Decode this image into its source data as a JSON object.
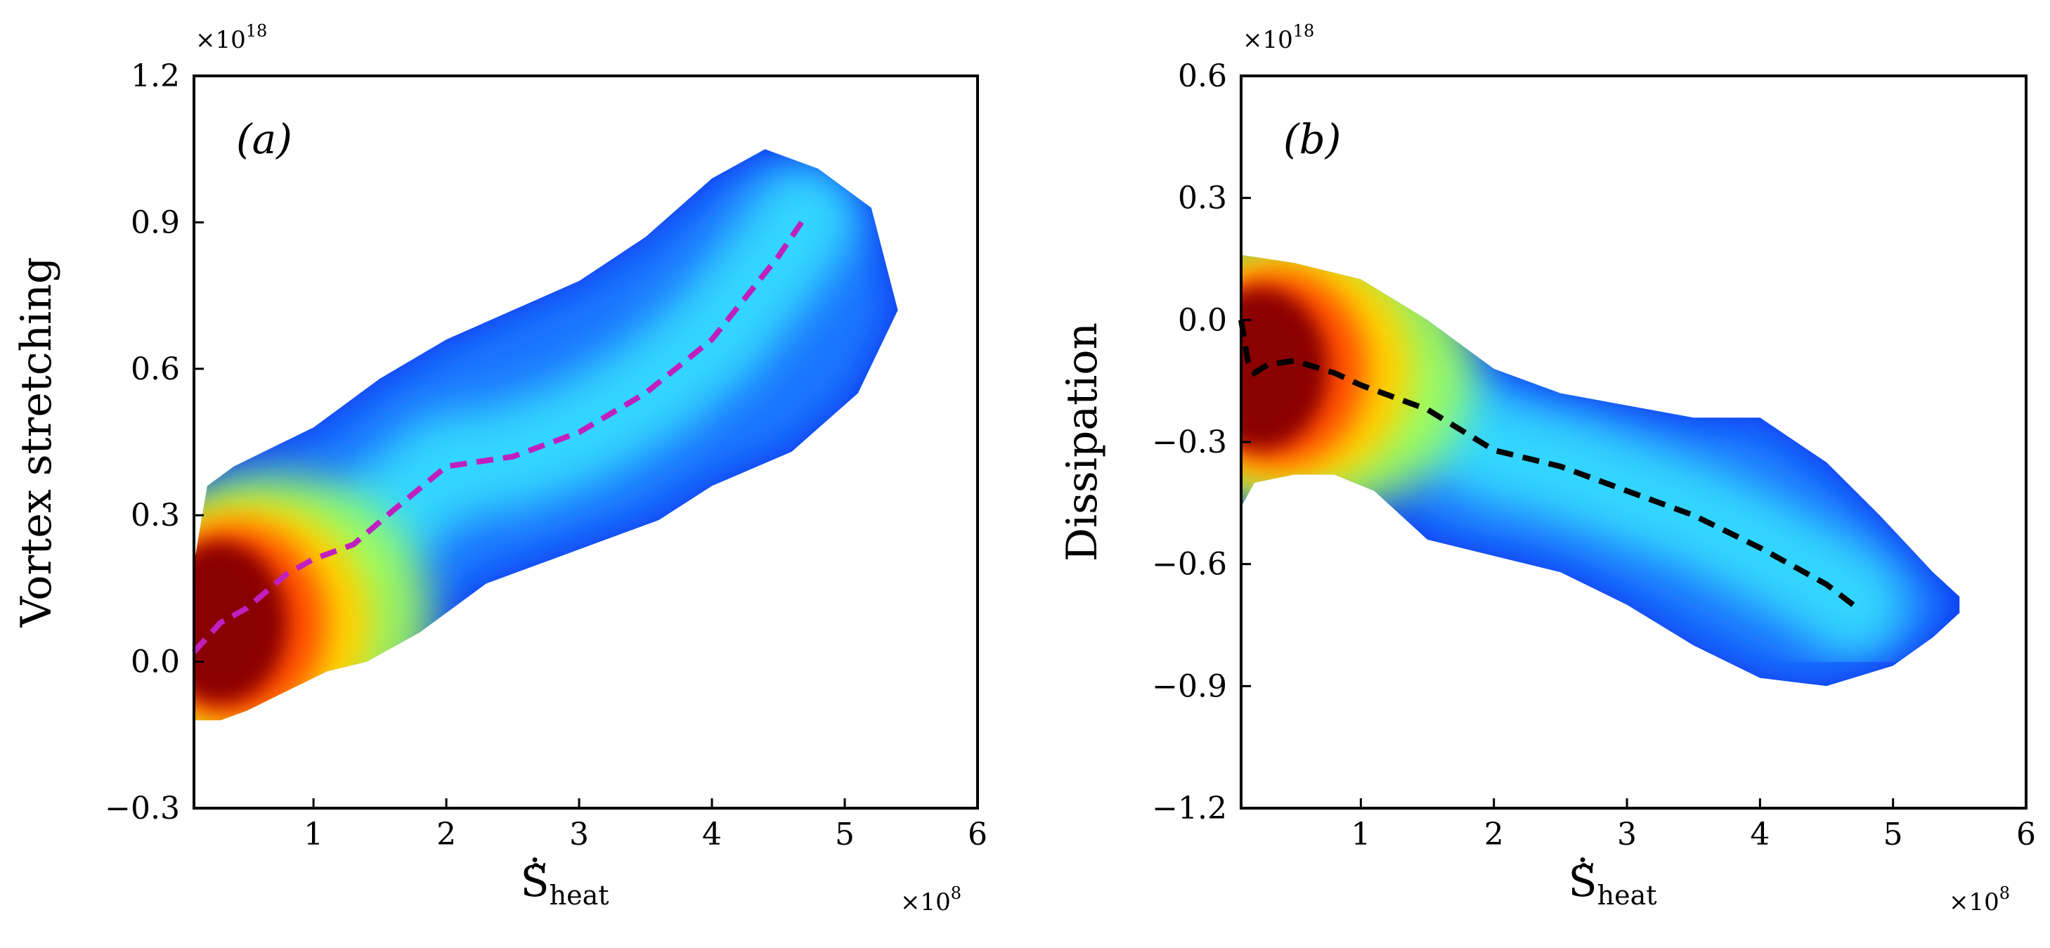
{
  "chart_data": [
    {
      "type": "heatmap",
      "panel_label": "(a)",
      "ylabel": "Vortex stretching",
      "xlabel": "Ṡ̃",
      "xlabel_sub": "heat",
      "x_multiplier": "×10",
      "x_exponent": "8",
      "y_multiplier": "×10",
      "y_exponent": "18",
      "xlim": [
        0.1,
        6
      ],
      "ylim": [
        -0.3,
        1.2
      ],
      "xticks": [
        1,
        2,
        3,
        4,
        5,
        6
      ],
      "xtick_labels": [
        "1",
        "2",
        "3",
        "4",
        "5",
        "6"
      ],
      "yticks": [
        -0.3,
        0.0,
        0.3,
        0.6,
        0.9,
        1.2
      ],
      "ytick_labels": [
        "−0.3",
        "0.0",
        "0.3",
        "0.6",
        "0.9",
        "1.2"
      ],
      "colormap": "jet",
      "mean_line_color": "#c01fc0",
      "density_upper_boundary": [
        [
          0.1,
          0.2
        ],
        [
          0.2,
          0.36
        ],
        [
          0.4,
          0.4
        ],
        [
          0.7,
          0.44
        ],
        [
          1.0,
          0.48
        ],
        [
          1.5,
          0.58
        ],
        [
          2.0,
          0.66
        ],
        [
          2.5,
          0.72
        ],
        [
          3.0,
          0.78
        ],
        [
          3.5,
          0.87
        ],
        [
          4.0,
          0.99
        ],
        [
          4.4,
          1.05
        ],
        [
          4.8,
          1.01
        ],
        [
          5.2,
          0.93
        ],
        [
          5.4,
          0.72
        ]
      ],
      "density_lower_boundary": [
        [
          5.4,
          0.72
        ],
        [
          5.1,
          0.55
        ],
        [
          4.6,
          0.43
        ],
        [
          4.0,
          0.36
        ],
        [
          3.6,
          0.29
        ],
        [
          3.2,
          0.25
        ],
        [
          2.8,
          0.21
        ],
        [
          2.3,
          0.16
        ],
        [
          1.8,
          0.06
        ],
        [
          1.4,
          0.0
        ],
        [
          1.1,
          -0.02
        ],
        [
          0.8,
          -0.06
        ],
        [
          0.5,
          -0.1
        ],
        [
          0.3,
          -0.12
        ],
        [
          0.1,
          -0.12
        ]
      ],
      "high_density_core": {
        "x": 0.35,
        "y": 0.08
      },
      "mean_line": {
        "x": [
          0.1,
          0.3,
          0.5,
          0.8,
          1.0,
          1.3,
          1.6,
          2.0,
          2.5,
          3.0,
          3.5,
          4.0,
          4.5,
          4.7
        ],
        "y": [
          0.02,
          0.08,
          0.11,
          0.18,
          0.21,
          0.24,
          0.31,
          0.4,
          0.42,
          0.47,
          0.55,
          0.66,
          0.83,
          0.91
        ],
        "style": "dashed"
      }
    },
    {
      "type": "heatmap",
      "panel_label": "(b)",
      "ylabel": "Dissipation",
      "xlabel": "Ṡ̃",
      "xlabel_sub": "heat",
      "x_multiplier": "×10",
      "x_exponent": "8",
      "y_multiplier": "×10",
      "y_exponent": "18",
      "xlim": [
        0.1,
        6
      ],
      "ylim": [
        -1.2,
        0.6
      ],
      "xticks": [
        1,
        2,
        3,
        4,
        5,
        6
      ],
      "xtick_labels": [
        "1",
        "2",
        "3",
        "4",
        "5",
        "6"
      ],
      "yticks": [
        -1.2,
        -0.9,
        -0.6,
        -0.3,
        0.0,
        0.3,
        0.6
      ],
      "ytick_labels": [
        "−1.2",
        "−0.9",
        "−0.6",
        "−0.3",
        "0.0",
        "0.3",
        "0.6"
      ],
      "colormap": "jet",
      "mean_line_color": "#000000",
      "density_upper_boundary": [
        [
          0.1,
          0.16
        ],
        [
          0.5,
          0.14
        ],
        [
          1.0,
          0.1
        ],
        [
          1.5,
          0.0
        ],
        [
          2.0,
          -0.12
        ],
        [
          2.5,
          -0.18
        ],
        [
          3.0,
          -0.21
        ],
        [
          3.5,
          -0.24
        ],
        [
          4.0,
          -0.24
        ],
        [
          4.5,
          -0.35
        ],
        [
          4.9,
          -0.48
        ],
        [
          5.3,
          -0.62
        ],
        [
          5.5,
          -0.68
        ]
      ],
      "density_lower_boundary": [
        [
          5.5,
          -0.72
        ],
        [
          5.3,
          -0.78
        ],
        [
          5.0,
          -0.85
        ],
        [
          4.5,
          -0.9
        ],
        [
          4.0,
          -0.88
        ],
        [
          3.5,
          -0.8
        ],
        [
          3.0,
          -0.7
        ],
        [
          2.5,
          -0.62
        ],
        [
          2.0,
          -0.58
        ],
        [
          1.5,
          -0.54
        ],
        [
          1.1,
          -0.42
        ],
        [
          0.8,
          -0.38
        ],
        [
          0.5,
          -0.38
        ],
        [
          0.2,
          -0.4
        ],
        [
          0.1,
          -0.46
        ]
      ],
      "high_density_core": {
        "x": 0.3,
        "y": -0.12
      },
      "mean_line": {
        "x": [
          0.1,
          0.15,
          0.2,
          0.3,
          0.5,
          0.8,
          1.0,
          1.5,
          2.0,
          2.5,
          3.0,
          3.5,
          4.0,
          4.5,
          4.7
        ],
        "y": [
          0.0,
          -0.1,
          -0.13,
          -0.11,
          -0.1,
          -0.13,
          -0.16,
          -0.22,
          -0.32,
          -0.36,
          -0.42,
          -0.48,
          -0.56,
          -0.65,
          -0.7
        ],
        "style": "dashed"
      }
    }
  ]
}
